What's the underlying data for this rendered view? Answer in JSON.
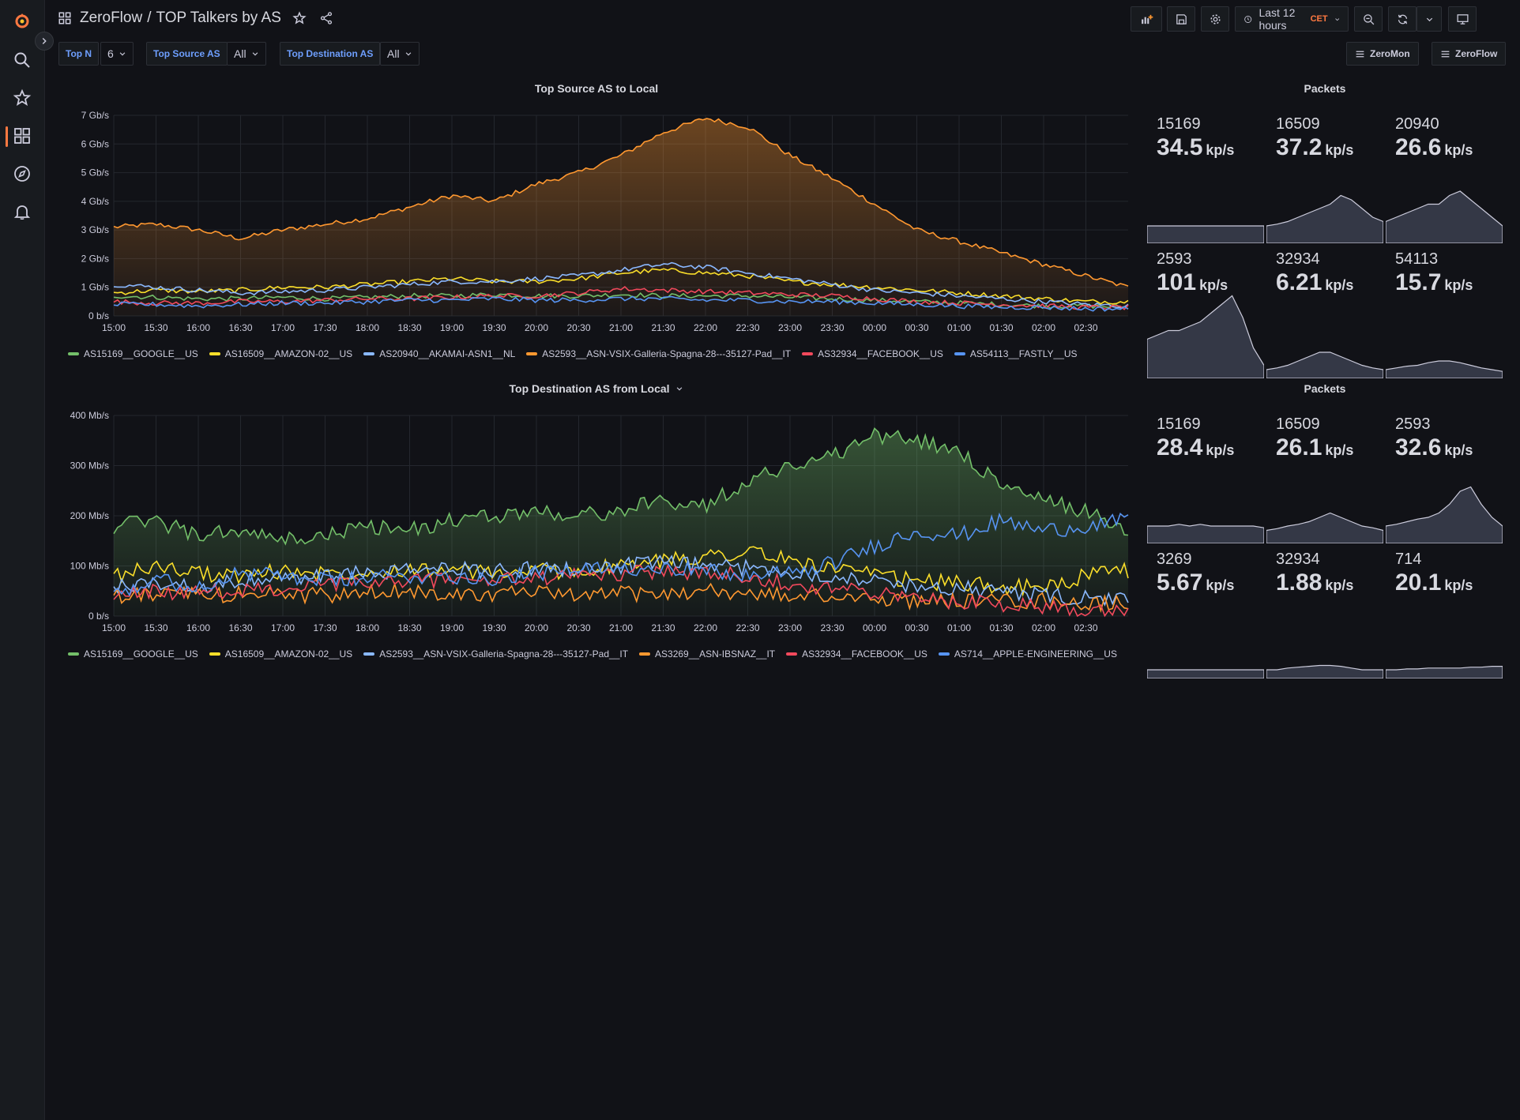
{
  "app": {
    "breadcrumb_folder": "ZeroFlow",
    "breadcrumb_sep": "/",
    "title": "TOP Talkers by AS",
    "accent": "#ff7941"
  },
  "toolbar": {
    "time_range": "Last 12 hours",
    "timezone": "CET"
  },
  "variables": [
    {
      "label": "Top N",
      "value": "6"
    },
    {
      "label": "Top Source AS",
      "value": "All"
    },
    {
      "label": "Top Destination AS",
      "value": "All"
    }
  ],
  "dashboard_links": [
    "ZeroMon",
    "ZeroFlow"
  ],
  "panels": {
    "source_chart": {
      "title": "Top Source AS to Local"
    },
    "dest_chart": {
      "title": "Top Destination AS from Local"
    },
    "source_stats": {
      "title": "Packets"
    },
    "dest_stats": {
      "title": "Packets"
    }
  },
  "chart_data": [
    {
      "type": "line",
      "title": "Top Source AS to Local",
      "x_ticks": [
        "15:00",
        "15:30",
        "16:00",
        "16:30",
        "17:00",
        "17:30",
        "18:00",
        "18:30",
        "19:00",
        "19:30",
        "20:00",
        "20:30",
        "21:00",
        "21:30",
        "22:00",
        "22:30",
        "23:00",
        "23:30",
        "00:00",
        "00:30",
        "01:00",
        "01:30",
        "02:00",
        "02:30"
      ],
      "y_ticks": [
        "0 b/s",
        "1 Gb/s",
        "2 Gb/s",
        "3 Gb/s",
        "4 Gb/s",
        "5 Gb/s",
        "6 Gb/s",
        "7 Gb/s"
      ],
      "ylim": [
        0,
        7.0
      ],
      "y_unit": "Gb/s",
      "x_hours": [
        15.0,
        15.5,
        16.0,
        16.5,
        17.0,
        17.5,
        18.0,
        18.5,
        19.0,
        19.5,
        20.0,
        20.5,
        21.0,
        21.5,
        22.0,
        22.5,
        23.0,
        23.5,
        24.0,
        24.5,
        25.0,
        25.5,
        26.0,
        26.5,
        27.0
      ],
      "series": [
        {
          "name": "AS15169__GOOGLE__US",
          "color": "#73bf69",
          "values": [
            0.7,
            0.65,
            0.6,
            0.6,
            0.65,
            0.6,
            0.65,
            0.7,
            0.7,
            0.75,
            0.7,
            0.7,
            0.75,
            0.7,
            0.7,
            0.7,
            0.65,
            0.6,
            0.55,
            0.5,
            0.45,
            0.4,
            0.35,
            0.35,
            0.3
          ]
        },
        {
          "name": "AS16509__AMAZON-02__US",
          "color": "#fade2a",
          "values": [
            0.8,
            0.9,
            0.85,
            0.9,
            1.0,
            1.0,
            1.1,
            1.2,
            1.3,
            1.2,
            1.2,
            1.3,
            1.5,
            1.6,
            1.5,
            1.4,
            1.2,
            1.1,
            1.0,
            0.9,
            0.8,
            0.7,
            0.6,
            0.5,
            0.5
          ]
        },
        {
          "name": "AS20940__AKAMAI-ASN1__NL",
          "color": "#8ab8ff",
          "values": [
            1.1,
            1.0,
            0.9,
            0.8,
            0.85,
            0.9,
            1.0,
            1.1,
            1.2,
            1.2,
            1.3,
            1.4,
            1.6,
            1.8,
            1.7,
            1.5,
            1.3,
            1.1,
            0.9,
            0.8,
            0.7,
            0.6,
            0.5,
            0.4,
            0.35
          ]
        },
        {
          "name": "AS2593__ASN-VSIX-Galleria-Spagna-28---35127-Pad__IT",
          "color": "#ff9830",
          "fill": true,
          "values": [
            3.1,
            3.2,
            3.0,
            2.7,
            3.0,
            3.2,
            3.4,
            3.8,
            4.2,
            4.0,
            4.6,
            5.0,
            5.6,
            6.4,
            6.9,
            6.6,
            5.6,
            4.8,
            3.9,
            3.0,
            2.6,
            2.2,
            1.8,
            1.4,
            1.0
          ]
        },
        {
          "name": "AS32934__FACEBOOK__US",
          "color": "#f2495c",
          "values": [
            0.5,
            0.45,
            0.45,
            0.5,
            0.5,
            0.55,
            0.6,
            0.6,
            0.65,
            0.7,
            0.7,
            0.8,
            0.95,
            0.9,
            0.85,
            0.8,
            0.75,
            0.7,
            0.6,
            0.5,
            0.45,
            0.4,
            0.35,
            0.3,
            0.3
          ]
        },
        {
          "name": "AS54113__FASTLY__US",
          "color": "#5794f2",
          "values": [
            0.4,
            0.4,
            0.35,
            0.4,
            0.45,
            0.45,
            0.5,
            0.55,
            0.55,
            0.6,
            0.55,
            0.55,
            0.6,
            0.6,
            0.55,
            0.55,
            0.5,
            0.5,
            0.45,
            0.4,
            0.35,
            0.3,
            0.3,
            0.25,
            0.25
          ]
        }
      ]
    },
    {
      "type": "line",
      "title": "Top Destination AS from Local",
      "x_ticks": [
        "15:00",
        "15:30",
        "16:00",
        "16:30",
        "17:00",
        "17:30",
        "18:00",
        "18:30",
        "19:00",
        "19:30",
        "20:00",
        "20:30",
        "21:00",
        "21:30",
        "22:00",
        "22:30",
        "23:00",
        "23:30",
        "00:00",
        "00:30",
        "01:00",
        "01:30",
        "02:00",
        "02:30"
      ],
      "y_ticks": [
        "0 b/s",
        "100 Mb/s",
        "200 Mb/s",
        "300 Mb/s",
        "400 Mb/s"
      ],
      "ylim": [
        0,
        400
      ],
      "y_unit": "Mb/s",
      "x_hours": [
        15.0,
        15.5,
        16.0,
        16.5,
        17.0,
        17.5,
        18.0,
        18.5,
        19.0,
        19.5,
        20.0,
        20.5,
        21.0,
        21.5,
        22.0,
        22.5,
        23.0,
        23.5,
        24.0,
        24.5,
        25.0,
        25.5,
        26.0,
        26.5,
        27.0
      ],
      "series": [
        {
          "name": "AS15169__GOOGLE__US",
          "color": "#73bf69",
          "fill": true,
          "values": [
            180,
            190,
            160,
            170,
            150,
            160,
            180,
            170,
            190,
            200,
            210,
            200,
            210,
            230,
            220,
            270,
            300,
            320,
            360,
            350,
            330,
            260,
            230,
            210,
            170
          ]
        },
        {
          "name": "AS16509__AMAZON-02__US",
          "color": "#fade2a",
          "values": [
            80,
            100,
            85,
            80,
            90,
            85,
            90,
            95,
            90,
            85,
            90,
            90,
            100,
            110,
            120,
            130,
            110,
            95,
            80,
            70,
            65,
            60,
            55,
            80,
            90
          ]
        },
        {
          "name": "AS2593__ASN-VSIX-Galleria-Spagna-28---35127-Pad__IT",
          "color": "#8ab8ff",
          "values": [
            60,
            65,
            60,
            70,
            75,
            80,
            85,
            90,
            95,
            90,
            95,
            95,
            100,
            105,
            100,
            95,
            90,
            80,
            70,
            60,
            55,
            50,
            40,
            35,
            30
          ]
        },
        {
          "name": "AS3269__ASN-IBSNAZ__IT",
          "color": "#ff9830",
          "values": [
            40,
            45,
            40,
            45,
            45,
            40,
            45,
            50,
            45,
            45,
            45,
            40,
            45,
            45,
            50,
            45,
            40,
            40,
            35,
            30,
            30,
            30,
            30,
            25,
            25
          ]
        },
        {
          "name": "AS32934__FACEBOOK__US",
          "color": "#f2495c",
          "values": [
            45,
            50,
            45,
            50,
            55,
            60,
            65,
            70,
            75,
            70,
            75,
            80,
            85,
            90,
            85,
            80,
            65,
            55,
            45,
            35,
            30,
            25,
            20,
            15,
            15
          ]
        },
        {
          "name": "AS714__APPLE-ENGINEERING__US",
          "color": "#5794f2",
          "values": [
            50,
            70,
            60,
            85,
            80,
            70,
            75,
            80,
            80,
            75,
            85,
            90,
            95,
            100,
            90,
            80,
            85,
            105,
            140,
            170,
            160,
            190,
            170,
            180,
            190
          ]
        }
      ]
    }
  ],
  "source_stats": [
    {
      "label": "15169",
      "value": "34.5",
      "unit": "kp/s",
      "spark": [
        0.2,
        0.2,
        0.2,
        0.2,
        0.2,
        0.2,
        0.2,
        0.2,
        0.2,
        0.2,
        0.2,
        0.2
      ]
    },
    {
      "label": "16509",
      "value": "37.2",
      "unit": "kp/s",
      "spark": [
        0.2,
        0.22,
        0.25,
        0.3,
        0.35,
        0.4,
        0.45,
        0.55,
        0.5,
        0.4,
        0.3,
        0.25
      ]
    },
    {
      "label": "20940",
      "value": "26.6",
      "unit": "kp/s",
      "spark": [
        0.25,
        0.3,
        0.35,
        0.4,
        0.45,
        0.45,
        0.55,
        0.6,
        0.5,
        0.4,
        0.3,
        0.2
      ]
    },
    {
      "label": "2593",
      "value": "101",
      "unit": "kp/s",
      "spark": [
        0.45,
        0.5,
        0.55,
        0.55,
        0.6,
        0.65,
        0.75,
        0.85,
        0.95,
        0.7,
        0.35,
        0.15
      ]
    },
    {
      "label": "32934",
      "value": "6.21",
      "unit": "kp/s",
      "spark": [
        0.1,
        0.12,
        0.15,
        0.2,
        0.25,
        0.3,
        0.3,
        0.25,
        0.2,
        0.15,
        0.12,
        0.1
      ]
    },
    {
      "label": "54113",
      "value": "15.7",
      "unit": "kp/s",
      "spark": [
        0.1,
        0.12,
        0.14,
        0.15,
        0.18,
        0.2,
        0.2,
        0.18,
        0.15,
        0.12,
        0.1,
        0.08
      ]
    }
  ],
  "dest_stats": [
    {
      "label": "15169",
      "value": "28.4",
      "unit": "kp/s",
      "spark": [
        0.2,
        0.2,
        0.2,
        0.22,
        0.2,
        0.22,
        0.2,
        0.2,
        0.2,
        0.2,
        0.2,
        0.18
      ]
    },
    {
      "label": "16509",
      "value": "26.1",
      "unit": "kp/s",
      "spark": [
        0.15,
        0.17,
        0.2,
        0.22,
        0.25,
        0.3,
        0.35,
        0.3,
        0.25,
        0.2,
        0.18,
        0.15
      ]
    },
    {
      "label": "2593",
      "value": "32.6",
      "unit": "kp/s",
      "spark": [
        0.2,
        0.22,
        0.25,
        0.28,
        0.3,
        0.35,
        0.45,
        0.6,
        0.65,
        0.45,
        0.3,
        0.2
      ]
    },
    {
      "label": "3269",
      "value": "5.67",
      "unit": "kp/s",
      "spark": [
        0.1,
        0.1,
        0.1,
        0.1,
        0.1,
        0.1,
        0.1,
        0.1,
        0.1,
        0.1,
        0.1,
        0.1
      ]
    },
    {
      "label": "32934",
      "value": "1.88",
      "unit": "kp/s",
      "spark": [
        0.1,
        0.1,
        0.12,
        0.13,
        0.14,
        0.15,
        0.15,
        0.14,
        0.12,
        0.1,
        0.1,
        0.1
      ]
    },
    {
      "label": "714",
      "value": "20.1",
      "unit": "kp/s",
      "spark": [
        0.1,
        0.1,
        0.11,
        0.11,
        0.12,
        0.12,
        0.12,
        0.12,
        0.13,
        0.13,
        0.14,
        0.14
      ]
    }
  ]
}
